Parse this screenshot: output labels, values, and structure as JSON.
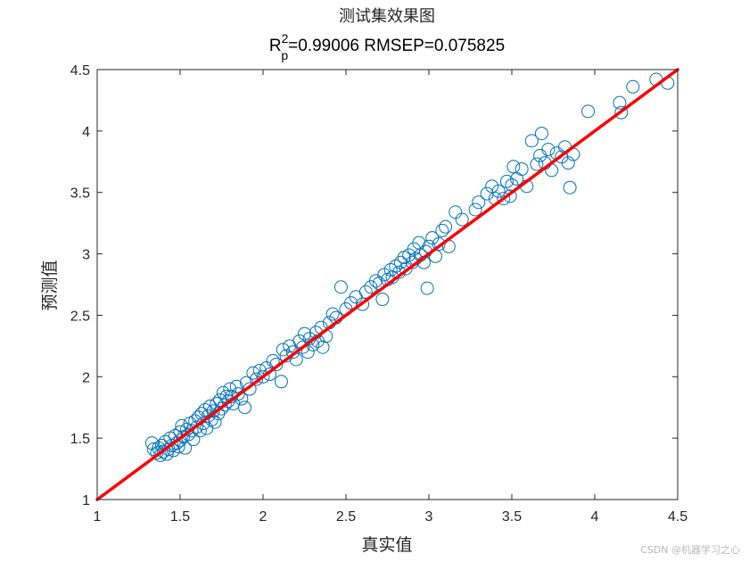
{
  "chart_data": {
    "type": "scatter",
    "title": "测试集效果图",
    "subtitle": {
      "r_base": "R",
      "r_sup": "2",
      "r_sub": "p",
      "rest": "=0.99006  RMSEP=0.075825"
    },
    "xlabel": "真实值",
    "ylabel": "预测值",
    "xlim": [
      1,
      4.5
    ],
    "ylim": [
      1,
      4.5
    ],
    "x_ticks": [
      1,
      1.5,
      2,
      2.5,
      3,
      3.5,
      4,
      4.5
    ],
    "x_tick_labels": [
      "1",
      "1.5",
      "2",
      "2.5",
      "3",
      "3.5",
      "4",
      "4.5"
    ],
    "y_ticks": [
      1,
      1.5,
      2,
      2.5,
      3,
      3.5,
      4,
      4.5
    ],
    "y_tick_labels": [
      "1",
      "1.5",
      "2",
      "2.5",
      "3",
      "3.5",
      "4",
      "4.5"
    ],
    "grid": false,
    "marker_color": "#0072BD",
    "line_color": "#FF0000",
    "fit_line": {
      "x": [
        1,
        4.5
      ],
      "y": [
        1,
        4.5
      ]
    },
    "series": [
      {
        "marker": "circle",
        "points": [
          [
            1.33,
            1.46
          ],
          [
            1.34,
            1.41
          ],
          [
            1.36,
            1.38
          ],
          [
            1.37,
            1.42
          ],
          [
            1.38,
            1.36
          ],
          [
            1.39,
            1.44
          ],
          [
            1.4,
            1.39
          ],
          [
            1.41,
            1.47
          ],
          [
            1.42,
            1.37
          ],
          [
            1.43,
            1.41
          ],
          [
            1.44,
            1.5
          ],
          [
            1.45,
            1.44
          ],
          [
            1.46,
            1.4
          ],
          [
            1.47,
            1.52
          ],
          [
            1.48,
            1.46
          ],
          [
            1.49,
            1.43
          ],
          [
            1.5,
            1.55
          ],
          [
            1.5,
            1.48
          ],
          [
            1.51,
            1.6
          ],
          [
            1.52,
            1.51
          ],
          [
            1.53,
            1.42
          ],
          [
            1.54,
            1.57
          ],
          [
            1.55,
            1.53
          ],
          [
            1.56,
            1.62
          ],
          [
            1.57,
            1.56
          ],
          [
            1.58,
            1.49
          ],
          [
            1.59,
            1.64
          ],
          [
            1.6,
            1.59
          ],
          [
            1.61,
            1.67
          ],
          [
            1.62,
            1.56
          ],
          [
            1.63,
            1.7
          ],
          [
            1.64,
            1.62
          ],
          [
            1.65,
            1.73
          ],
          [
            1.66,
            1.58
          ],
          [
            1.67,
            1.68
          ],
          [
            1.68,
            1.76
          ],
          [
            1.69,
            1.65
          ],
          [
            1.7,
            1.72
          ],
          [
            1.71,
            1.63
          ],
          [
            1.72,
            1.78
          ],
          [
            1.73,
            1.7
          ],
          [
            1.74,
            1.81
          ],
          [
            1.75,
            1.74
          ],
          [
            1.76,
            1.87
          ],
          [
            1.77,
            1.77
          ],
          [
            1.78,
            1.84
          ],
          [
            1.79,
            1.8
          ],
          [
            1.8,
            1.9
          ],
          [
            1.81,
            1.84
          ],
          [
            1.82,
            1.78
          ],
          [
            1.84,
            1.92
          ],
          [
            1.85,
            1.86
          ],
          [
            1.87,
            1.82
          ],
          [
            1.89,
            1.75
          ],
          [
            1.9,
            1.95
          ],
          [
            1.92,
            1.9
          ],
          [
            1.94,
            2.03
          ],
          [
            1.96,
            1.98
          ],
          [
            1.98,
            2.05
          ],
          [
            2.0,
            2.0
          ],
          [
            2.02,
            2.07
          ],
          [
            2.04,
            2.02
          ],
          [
            2.06,
            2.13
          ],
          [
            2.08,
            2.1
          ],
          [
            2.11,
            1.96
          ],
          [
            2.12,
            2.22
          ],
          [
            2.14,
            2.17
          ],
          [
            2.16,
            2.25
          ],
          [
            2.18,
            2.2
          ],
          [
            2.2,
            2.14
          ],
          [
            2.22,
            2.29
          ],
          [
            2.24,
            2.24
          ],
          [
            2.25,
            2.35
          ],
          [
            2.27,
            2.2
          ],
          [
            2.28,
            2.31
          ],
          [
            2.3,
            2.26
          ],
          [
            2.32,
            2.36
          ],
          [
            2.33,
            2.29
          ],
          [
            2.35,
            2.4
          ],
          [
            2.36,
            2.24
          ],
          [
            2.38,
            2.33
          ],
          [
            2.4,
            2.44
          ],
          [
            2.42,
            2.51
          ],
          [
            2.44,
            2.48
          ],
          [
            2.47,
            2.73
          ],
          [
            2.5,
            2.55
          ],
          [
            2.53,
            2.6
          ],
          [
            2.56,
            2.65
          ],
          [
            2.6,
            2.59
          ],
          [
            2.62,
            2.69
          ],
          [
            2.65,
            2.73
          ],
          [
            2.68,
            2.78
          ],
          [
            2.7,
            2.76
          ],
          [
            2.72,
            2.63
          ],
          [
            2.73,
            2.83
          ],
          [
            2.75,
            2.79
          ],
          [
            2.77,
            2.87
          ],
          [
            2.78,
            2.81
          ],
          [
            2.8,
            2.9
          ],
          [
            2.82,
            2.85
          ],
          [
            2.83,
            2.93
          ],
          [
            2.85,
            2.97
          ],
          [
            2.86,
            2.88
          ],
          [
            2.88,
            2.99
          ],
          [
            2.9,
            2.93
          ],
          [
            2.91,
            3.04
          ],
          [
            2.92,
            2.96
          ],
          [
            2.94,
            3.09
          ],
          [
            2.95,
            2.99
          ],
          [
            2.97,
            2.93
          ],
          [
            2.98,
            3.02
          ],
          [
            2.99,
            2.72
          ],
          [
            3.0,
            3.06
          ],
          [
            3.02,
            3.13
          ],
          [
            3.04,
            2.98
          ],
          [
            3.06,
            3.08
          ],
          [
            3.08,
            3.19
          ],
          [
            3.1,
            3.22
          ],
          [
            3.12,
            3.06
          ],
          [
            3.16,
            3.34
          ],
          [
            3.2,
            3.28
          ],
          [
            3.28,
            3.36
          ],
          [
            3.3,
            3.42
          ],
          [
            3.35,
            3.49
          ],
          [
            3.38,
            3.55
          ],
          [
            3.4,
            3.45
          ],
          [
            3.42,
            3.51
          ],
          [
            3.45,
            3.45
          ],
          [
            3.47,
            3.59
          ],
          [
            3.49,
            3.47
          ],
          [
            3.5,
            3.56
          ],
          [
            3.51,
            3.71
          ],
          [
            3.53,
            3.61
          ],
          [
            3.56,
            3.69
          ],
          [
            3.59,
            3.55
          ],
          [
            3.62,
            3.92
          ],
          [
            3.65,
            3.73
          ],
          [
            3.67,
            3.8
          ],
          [
            3.68,
            3.98
          ],
          [
            3.7,
            3.74
          ],
          [
            3.72,
            3.85
          ],
          [
            3.74,
            3.68
          ],
          [
            3.77,
            3.82
          ],
          [
            3.8,
            3.79
          ],
          [
            3.82,
            3.87
          ],
          [
            3.84,
            3.74
          ],
          [
            3.85,
            3.54
          ],
          [
            3.87,
            3.81
          ],
          [
            3.96,
            4.16
          ],
          [
            4.15,
            4.23
          ],
          [
            4.16,
            4.15
          ],
          [
            4.23,
            4.36
          ],
          [
            4.37,
            4.42
          ],
          [
            4.44,
            4.39
          ]
        ]
      }
    ]
  },
  "watermark": "CSDN @机器学习之心"
}
